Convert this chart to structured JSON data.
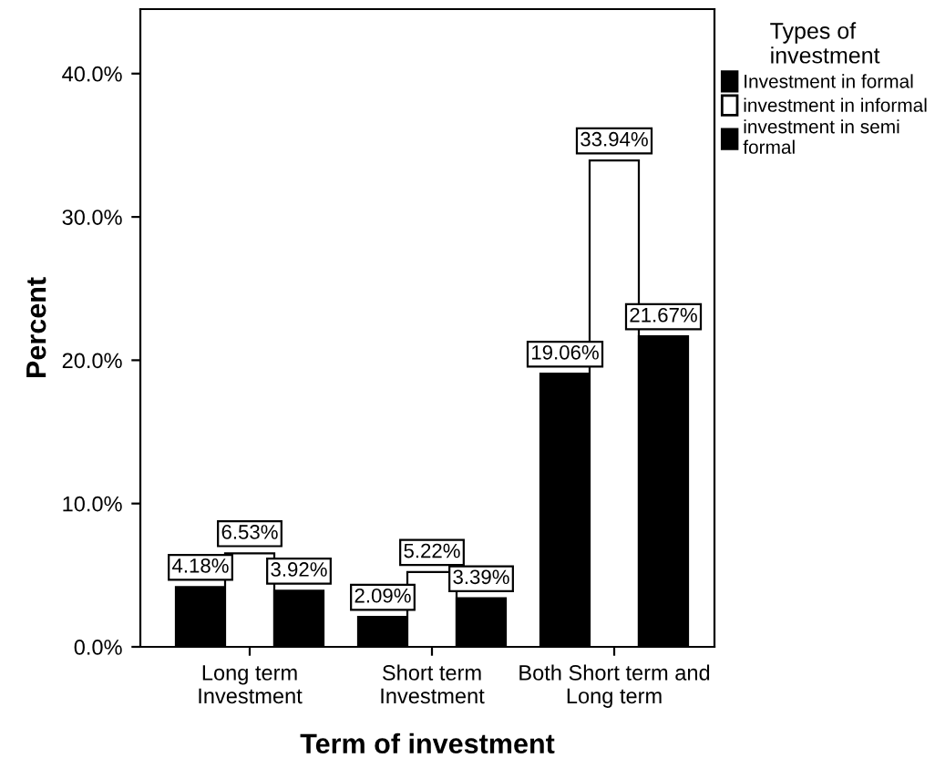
{
  "chart_data": {
    "type": "bar",
    "xlabel": "Term of investment",
    "ylabel": "Percent",
    "legend_title": "Types of\ninvestment",
    "categories": [
      "Long term\nInvestment",
      "Short term\nInvestment",
      "Both Short term and\nLong term"
    ],
    "series": [
      {
        "name": "Investment in formal",
        "color": "#000000",
        "values": [
          4.18,
          2.09,
          19.06
        ],
        "value_labels": [
          "4.18%",
          "2.09%",
          "19.06%"
        ]
      },
      {
        "name": "investment in informal",
        "color": "#ffffff",
        "values": [
          6.53,
          5.22,
          33.94
        ],
        "value_labels": [
          "6.53%",
          "5.22%",
          "33.94%"
        ]
      },
      {
        "name": "investment in semi\nformal",
        "color": "#000000",
        "values": [
          3.92,
          3.39,
          21.67
        ],
        "value_labels": [
          "3.92%",
          "3.39%",
          "21.67%"
        ]
      }
    ],
    "ylim": [
      0,
      44.5
    ],
    "yticks": [
      {
        "value": 0,
        "label": "0.0%"
      },
      {
        "value": 10,
        "label": "10.0%"
      },
      {
        "value": 20,
        "label": "20.0%"
      },
      {
        "value": 30,
        "label": "30.0%"
      },
      {
        "value": 40,
        "label": "40.0%"
      }
    ],
    "grid": false,
    "legend": "top right"
  }
}
